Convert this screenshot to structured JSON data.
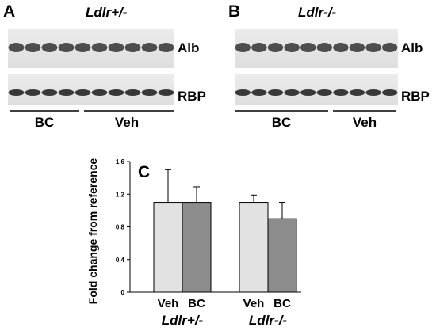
{
  "figure": {
    "panels": [
      {
        "letter": "A",
        "genotype": "Ldlr+/-",
        "blots": [
          {
            "label": "Alb",
            "lanes": 10
          },
          {
            "label": "RBP",
            "lanes": 10
          }
        ],
        "groups": [
          "BC",
          "Veh"
        ]
      },
      {
        "letter": "B",
        "genotype": "Ldlr-/-",
        "blots": [
          {
            "label": "Alb",
            "lanes": 10
          },
          {
            "label": "RBP",
            "lanes": 10
          }
        ],
        "groups": [
          "BC",
          "Veh"
        ]
      },
      {
        "letter": "C"
      }
    ]
  },
  "chart_data": {
    "type": "bar",
    "title": "",
    "ylabel": "Fold change from reference",
    "ylim": [
      0,
      1.6
    ],
    "yticks": [
      "0",
      "0.4",
      "0.8",
      "1.2",
      "1.6"
    ],
    "groups": [
      {
        "genotype": "Ldlr+/-",
        "bars": [
          {
            "category": "Veh",
            "value": 1.1,
            "error": 0.4,
            "color": "#e2e2e2"
          },
          {
            "category": "BC",
            "value": 1.1,
            "error": 0.19,
            "color": "#8c8c8c"
          }
        ]
      },
      {
        "genotype": "Ldlr-/-",
        "bars": [
          {
            "category": "Veh",
            "value": 1.1,
            "error": 0.09,
            "color": "#e2e2e2"
          },
          {
            "category": "BC",
            "value": 0.9,
            "error": 0.2,
            "color": "#8c8c8c"
          }
        ]
      }
    ]
  }
}
